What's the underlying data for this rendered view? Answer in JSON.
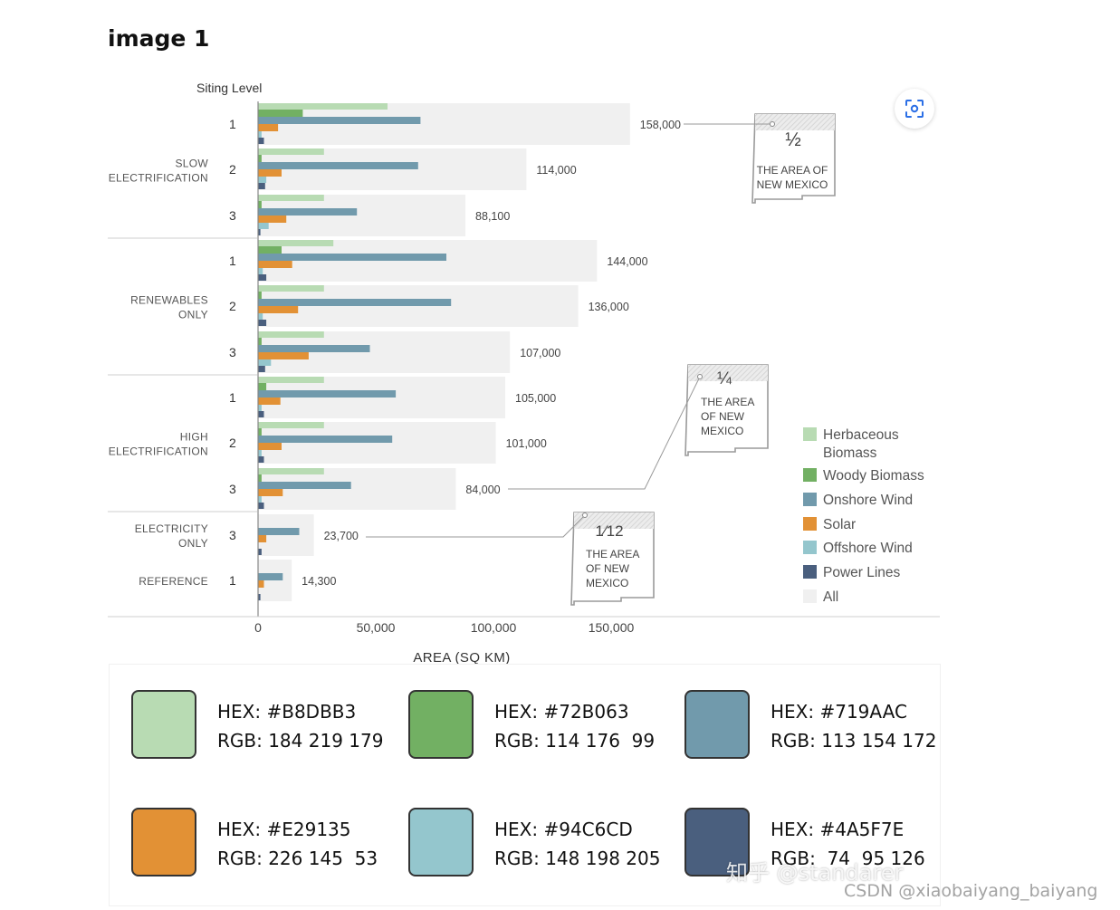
{
  "page": {
    "title": "image 1"
  },
  "scan_button": {
    "icon": "scan-icon"
  },
  "chart_data": {
    "type": "bar",
    "orientation": "horizontal",
    "xlabel": "AREA (SQ KM)",
    "ylabel": "Siting Level",
    "xlim": [
      0,
      160000
    ],
    "x_ticks": [
      0,
      50000,
      100000,
      150000
    ],
    "x_tick_labels": [
      "0",
      "50,000",
      "100,000",
      "150,000"
    ],
    "series": [
      {
        "name": "Herbaceous Biomass",
        "color": "#B8DBB3"
      },
      {
        "name": "Woody Biomass",
        "color": "#72B063"
      },
      {
        "name": "Onshore Wind",
        "color": "#719AAC"
      },
      {
        "name": "Solar",
        "color": "#E29135"
      },
      {
        "name": "Offshore Wind",
        "color": "#94C6CD"
      },
      {
        "name": "Power Lines",
        "color": "#4A5F7E"
      },
      {
        "name": "All",
        "color": "#F0F0F0"
      }
    ],
    "scenarios": [
      {
        "label_lines": [
          "SLOW",
          "ELECTRIFICATION"
        ],
        "rows": [
          {
            "level": "1",
            "total": 158000,
            "total_label": "158,000",
            "values": [
              55000,
              19000,
              69000,
              8500,
              1500,
              2500
            ]
          },
          {
            "level": "2",
            "total": 114000,
            "total_label": "114,000",
            "values": [
              28000,
              1500,
              68000,
              10000,
              3500,
              3000
            ]
          },
          {
            "level": "3",
            "total": 88100,
            "total_label": "88,100",
            "values": [
              28000,
              1500,
              42000,
              12000,
              4500,
              1000
            ]
          }
        ]
      },
      {
        "label_lines": [
          "RENEWABLES",
          "ONLY"
        ],
        "rows": [
          {
            "level": "1",
            "total": 144000,
            "total_label": "144,000",
            "values": [
              32000,
              10000,
              80000,
              14500,
              2000,
              3500
            ]
          },
          {
            "level": "2",
            "total": 136000,
            "total_label": "136,000",
            "values": [
              28000,
              1500,
              82000,
              17000,
              2000,
              3500
            ]
          },
          {
            "level": "3",
            "total": 107000,
            "total_label": "107,000",
            "values": [
              28000,
              1500,
              47500,
              21500,
              5500,
              3000
            ]
          }
        ]
      },
      {
        "label_lines": [
          "HIGH",
          "ELECTRIFICATION"
        ],
        "rows": [
          {
            "level": "1",
            "total": 105000,
            "total_label": "105,000",
            "values": [
              28000,
              3500,
              58500,
              9500,
              1500,
              2500
            ]
          },
          {
            "level": "2",
            "total": 101000,
            "total_label": "101,000",
            "values": [
              28000,
              1500,
              57000,
              10000,
              1500,
              2500
            ]
          },
          {
            "level": "3",
            "total": 84000,
            "total_label": "84,000",
            "values": [
              28000,
              1500,
              39500,
              10500,
              1500,
              2500
            ]
          }
        ]
      },
      {
        "label_lines": [
          "ELECTRICITY",
          "ONLY"
        ],
        "rows": [
          {
            "level": "3",
            "total": 23700,
            "total_label": "23,700",
            "values": [
              0,
              0,
              17500,
              3500,
              0,
              1500
            ]
          }
        ]
      },
      {
        "label_lines": [
          "REFERENCE"
        ],
        "rows": [
          {
            "level": "1",
            "total": 14300,
            "total_label": "14,300",
            "values": [
              0,
              0,
              10500,
              2500,
              0,
              1000
            ]
          }
        ]
      }
    ],
    "annotations": [
      {
        "fraction": "½",
        "text_lines": [
          "THE AREA OF",
          "NEW MEXICO"
        ],
        "points_to": "158,000"
      },
      {
        "fraction": "¼",
        "text_lines": [
          "THE AREA",
          "OF NEW",
          "MEXICO"
        ],
        "points_to": "84,000"
      },
      {
        "fraction": "1⁄12",
        "text_lines": [
          "THE AREA",
          "OF NEW",
          "MEXICO"
        ],
        "points_to": "23,700"
      }
    ],
    "legend_position": "right"
  },
  "swatches": [
    {
      "hex_label": "HEX: #B8DBB3",
      "rgb_label": "RGB: 184 219 179",
      "color": "#B8DBB3"
    },
    {
      "hex_label": "HEX: #72B063",
      "rgb_label": "RGB: 114 176  99",
      "color": "#72B063"
    },
    {
      "hex_label": "HEX: #719AAC",
      "rgb_label": "RGB: 113 154 172",
      "color": "#719AAC"
    },
    {
      "hex_label": "HEX: #E29135",
      "rgb_label": "RGB: 226 145  53",
      "color": "#E29135"
    },
    {
      "hex_label": "HEX: #94C6CD",
      "rgb_label": "RGB: 148 198 205",
      "color": "#94C6CD"
    },
    {
      "hex_label": "HEX: #4A5F7E",
      "rgb_label": "RGB:  74  95 126",
      "color": "#4A5F7E"
    }
  ],
  "watermarks": {
    "zhihu": "知乎 @standarer",
    "csdn": "CSDN @xiaobaiyang_baiyang"
  }
}
